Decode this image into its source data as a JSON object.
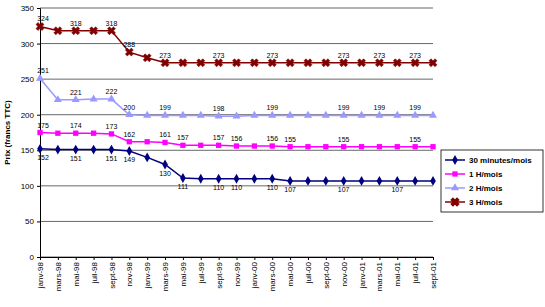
{
  "chart_data": {
    "type": "line",
    "y_label": "Prix (francs TTC)",
    "categories": [
      "janv-98",
      "mars-98",
      "mai-98",
      "juil-98",
      "sept-98",
      "nov-98",
      "janv-99",
      "mars-99",
      "mai-99",
      "juil-99",
      "sept-99",
      "nov-99",
      "janv-00",
      "mars-00",
      "mai-00",
      "juil-00",
      "sept-00",
      "nov-00",
      "janv-01",
      "mars-01",
      "mai-01",
      "juil-01",
      "sept-01"
    ],
    "series": [
      {
        "name": "30 minutes/mois",
        "color": "#000080",
        "marker": "diamond",
        "line_style": "solid",
        "values": [
          152,
          151,
          151,
          151,
          151,
          149,
          140,
          130,
          111,
          110,
          110,
          110,
          110,
          110,
          107,
          107,
          107,
          107,
          107,
          107,
          107,
          107,
          107
        ],
        "value_labels": [
          "152",
          null,
          "151",
          null,
          "151",
          "149",
          null,
          "130",
          "111",
          null,
          "110",
          "110",
          null,
          "110",
          "107",
          null,
          null,
          "107",
          null,
          null,
          "107",
          null,
          null
        ]
      },
      {
        "name": "1 H/mois",
        "color": "#ff00ff",
        "marker": "square",
        "line_style": "solid",
        "values": [
          175,
          174,
          174,
          174,
          173,
          162,
          162,
          161,
          157,
          157,
          157,
          156,
          156,
          156,
          155,
          155,
          155,
          155,
          155,
          155,
          155,
          155,
          155
        ],
        "value_labels": [
          "175",
          null,
          "174",
          null,
          "173",
          "162",
          null,
          "161",
          "157",
          null,
          "157",
          "156",
          null,
          "156",
          "155",
          null,
          null,
          "155",
          null,
          null,
          null,
          "155",
          null
        ]
      },
      {
        "name": "2 H/mois",
        "color": "#9999ff",
        "marker": "triangle",
        "line_style": "solid",
        "values": [
          251,
          221,
          221,
          222,
          222,
          200,
          199,
          199,
          199,
          199,
          198,
          198,
          199,
          199,
          199,
          199,
          199,
          199,
          199,
          199,
          199,
          199,
          199
        ],
        "value_labels": [
          "251",
          null,
          "221",
          null,
          "222",
          "200",
          null,
          "199",
          null,
          null,
          "198",
          null,
          null,
          "199",
          null,
          null,
          null,
          "199",
          null,
          "199",
          null,
          "199",
          null
        ]
      },
      {
        "name": "3 H/mois",
        "color": "#800000",
        "marker": "x",
        "line_style": "solid",
        "values": [
          324,
          318,
          318,
          318,
          318,
          288,
          280,
          273,
          273,
          273,
          273,
          273,
          273,
          273,
          273,
          273,
          273,
          273,
          273,
          273,
          273,
          273,
          273
        ],
        "value_labels": [
          "324",
          null,
          "318",
          null,
          "318",
          "288",
          null,
          "273",
          null,
          null,
          "273",
          null,
          null,
          "273",
          null,
          null,
          null,
          "273",
          null,
          "273",
          null,
          "273",
          null
        ]
      }
    ],
    "ylim": [
      0,
      350
    ],
    "yticks": [
      0,
      50,
      100,
      150,
      200,
      250,
      300,
      350
    ],
    "grid": true,
    "legend": "right",
    "data_labels": true
  }
}
